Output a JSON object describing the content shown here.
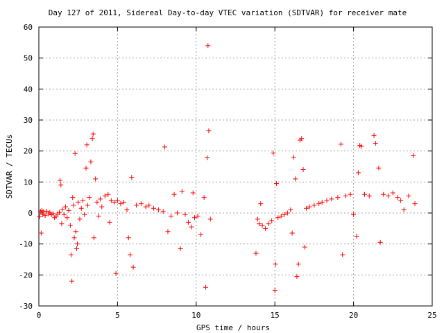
{
  "chart_data": {
    "type": "scatter",
    "title": "Day 127 of 2011, Sidereal Day-to-day VTEC variation (SDTVAR) for receiver mate",
    "xlabel": "GPS time / hours",
    "ylabel": "SDTVAR / TECUs",
    "xlim": [
      0,
      25
    ],
    "ylim": [
      -30,
      60
    ],
    "xticks": [
      0,
      5,
      10,
      15,
      20,
      25
    ],
    "yticks": [
      -30,
      -20,
      -10,
      0,
      10,
      20,
      30,
      40,
      50,
      60
    ],
    "grid": true,
    "legend": "none",
    "marker": "plus",
    "color": "#ff0000",
    "series": [
      {
        "values": [
          [
            0.05,
            -1.2
          ],
          [
            0.1,
            0.5
          ],
          [
            0.15,
            -6.5
          ],
          [
            0.2,
            0.8
          ],
          [
            0.25,
            -0.5
          ],
          [
            0.3,
            0.3
          ],
          [
            0.4,
            -0.8
          ],
          [
            0.5,
            0.6
          ],
          [
            0.6,
            -0.3
          ],
          [
            0.7,
            0.2
          ],
          [
            0.8,
            -0.6
          ],
          [
            0.9,
            -0.2
          ],
          [
            1.0,
            -1.5
          ],
          [
            1.1,
            -1.0
          ],
          [
            1.2,
            -0.4
          ],
          [
            1.3,
            0.2
          ],
          [
            1.35,
            10.5
          ],
          [
            1.4,
            9.0
          ],
          [
            1.45,
            -3.5
          ],
          [
            1.5,
            1.2
          ],
          [
            1.6,
            -0.5
          ],
          [
            1.7,
            2.0
          ],
          [
            1.8,
            -1.5
          ],
          [
            1.9,
            0.8
          ],
          [
            2.0,
            -4.0
          ],
          [
            2.05,
            -13.5
          ],
          [
            2.1,
            -22.0
          ],
          [
            2.15,
            5.0
          ],
          [
            2.2,
            2.5
          ],
          [
            2.25,
            -8.0
          ],
          [
            2.3,
            19.2
          ],
          [
            2.35,
            -6.0
          ],
          [
            2.4,
            -11.5
          ],
          [
            2.45,
            -10.0
          ],
          [
            2.5,
            3.5
          ],
          [
            2.6,
            -2.0
          ],
          [
            2.7,
            1.5
          ],
          [
            2.8,
            4.0
          ],
          [
            2.9,
            -0.5
          ],
          [
            3.0,
            14.5
          ],
          [
            3.05,
            22.0
          ],
          [
            3.1,
            2.5
          ],
          [
            3.2,
            5.0
          ],
          [
            3.3,
            16.5
          ],
          [
            3.4,
            24.0
          ],
          [
            3.45,
            25.5
          ],
          [
            3.5,
            -8.0
          ],
          [
            3.6,
            11.0
          ],
          [
            3.7,
            3.5
          ],
          [
            3.8,
            -1.0
          ],
          [
            3.9,
            4.5
          ],
          [
            4.0,
            2.0
          ],
          [
            4.2,
            5.5
          ],
          [
            4.4,
            6.0
          ],
          [
            4.5,
            -3.0
          ],
          [
            4.6,
            4.0
          ],
          [
            4.8,
            3.5
          ],
          [
            4.9,
            -19.5
          ],
          [
            5.0,
            4.0
          ],
          [
            5.2,
            3.0
          ],
          [
            5.4,
            3.5
          ],
          [
            5.6,
            1.0
          ],
          [
            5.7,
            -8.0
          ],
          [
            5.8,
            -13.5
          ],
          [
            5.9,
            11.5
          ],
          [
            6.0,
            -17.5
          ],
          [
            6.2,
            2.5
          ],
          [
            6.5,
            3.0
          ],
          [
            6.8,
            2.0
          ],
          [
            7.0,
            2.5
          ],
          [
            7.3,
            1.5
          ],
          [
            7.6,
            1.0
          ],
          [
            7.9,
            0.5
          ],
          [
            8.0,
            21.3
          ],
          [
            8.2,
            -6.0
          ],
          [
            8.4,
            -1.0
          ],
          [
            8.6,
            6.0
          ],
          [
            8.8,
            0.0
          ],
          [
            9.0,
            -11.5
          ],
          [
            9.1,
            7.0
          ],
          [
            9.3,
            -0.5
          ],
          [
            9.5,
            -3.0
          ],
          [
            9.7,
            -4.5
          ],
          [
            9.8,
            6.5
          ],
          [
            9.9,
            -1.5
          ],
          [
            10.1,
            -1.0
          ],
          [
            10.3,
            -7.0
          ],
          [
            10.5,
            5.0
          ],
          [
            10.6,
            -24.0
          ],
          [
            10.7,
            17.8
          ],
          [
            10.75,
            54.0
          ],
          [
            10.8,
            26.5
          ],
          [
            10.9,
            -2.0
          ],
          [
            13.8,
            -13.0
          ],
          [
            13.9,
            -2.0
          ],
          [
            14.0,
            -3.5
          ],
          [
            14.1,
            3.0
          ],
          [
            14.2,
            -4.0
          ],
          [
            14.4,
            -5.0
          ],
          [
            14.6,
            -3.5
          ],
          [
            14.8,
            -2.5
          ],
          [
            14.9,
            19.3
          ],
          [
            15.0,
            -25.0
          ],
          [
            15.05,
            -16.5
          ],
          [
            15.1,
            9.5
          ],
          [
            15.2,
            -1.5
          ],
          [
            15.4,
            -1.0
          ],
          [
            15.6,
            -0.5
          ],
          [
            15.8,
            0.0
          ],
          [
            16.0,
            1.0
          ],
          [
            16.1,
            -6.5
          ],
          [
            16.2,
            18.0
          ],
          [
            16.3,
            11.0
          ],
          [
            16.4,
            -20.5
          ],
          [
            16.5,
            -16.5
          ],
          [
            16.6,
            23.5
          ],
          [
            16.7,
            24.0
          ],
          [
            16.8,
            14.0
          ],
          [
            16.9,
            -11.0
          ],
          [
            17.0,
            1.5
          ],
          [
            17.2,
            2.0
          ],
          [
            17.5,
            2.5
          ],
          [
            17.8,
            3.0
          ],
          [
            18.0,
            3.5
          ],
          [
            18.3,
            4.0
          ],
          [
            18.6,
            4.5
          ],
          [
            19.0,
            5.0
          ],
          [
            19.2,
            22.2
          ],
          [
            19.3,
            -13.5
          ],
          [
            19.5,
            5.5
          ],
          [
            19.8,
            6.0
          ],
          [
            20.0,
            -0.5
          ],
          [
            20.2,
            -7.5
          ],
          [
            20.3,
            13.0
          ],
          [
            20.4,
            21.8
          ],
          [
            20.5,
            21.5
          ],
          [
            20.7,
            6.0
          ],
          [
            21.0,
            5.5
          ],
          [
            21.3,
            25.0
          ],
          [
            21.4,
            22.5
          ],
          [
            21.6,
            14.5
          ],
          [
            21.7,
            -9.5
          ],
          [
            21.9,
            6.0
          ],
          [
            22.2,
            5.5
          ],
          [
            22.5,
            6.5
          ],
          [
            22.8,
            5.0
          ],
          [
            23.0,
            4.0
          ],
          [
            23.2,
            1.0
          ],
          [
            23.5,
            5.5
          ],
          [
            23.8,
            18.5
          ],
          [
            23.9,
            3.0
          ]
        ]
      }
    ]
  }
}
